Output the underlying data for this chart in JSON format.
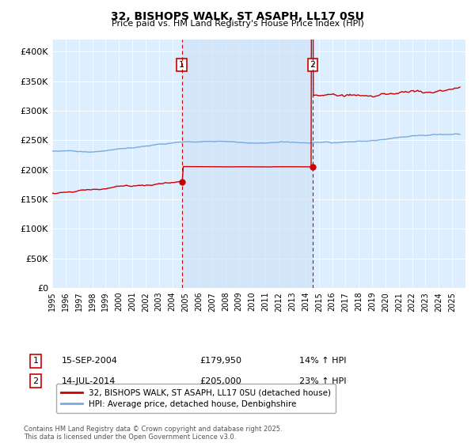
{
  "title1": "32, BISHOPS WALK, ST ASAPH, LL17 0SU",
  "title2": "Price paid vs. HM Land Registry's House Price Index (HPI)",
  "ylim": [
    0,
    420000
  ],
  "yticks": [
    0,
    50000,
    100000,
    150000,
    200000,
    250000,
    300000,
    350000,
    400000
  ],
  "ytick_labels": [
    "£0",
    "£50K",
    "£100K",
    "£150K",
    "£200K",
    "£250K",
    "£300K",
    "£350K",
    "£400K"
  ],
  "bg_color": "#ddeeff",
  "shade_color": "#d0e4f7",
  "red_color": "#cc0000",
  "blue_color": "#7aaadd",
  "marker1_date_x": 2004.71,
  "marker1_y": 179950,
  "marker2_date_x": 2014.54,
  "marker2_y": 205000,
  "legend_label1": "32, BISHOPS WALK, ST ASAPH, LL17 0SU (detached house)",
  "legend_label2": "HPI: Average price, detached house, Denbighshire",
  "ann1_date": "15-SEP-2004",
  "ann1_price": "£179,950",
  "ann1_hpi": "14% ↑ HPI",
  "ann2_date": "14-JUL-2014",
  "ann2_price": "£205,000",
  "ann2_hpi": "23% ↑ HPI",
  "footer": "Contains HM Land Registry data © Crown copyright and database right 2025.\nThis data is licensed under the Open Government Licence v3.0.",
  "xmin": 1995,
  "xmax": 2026
}
